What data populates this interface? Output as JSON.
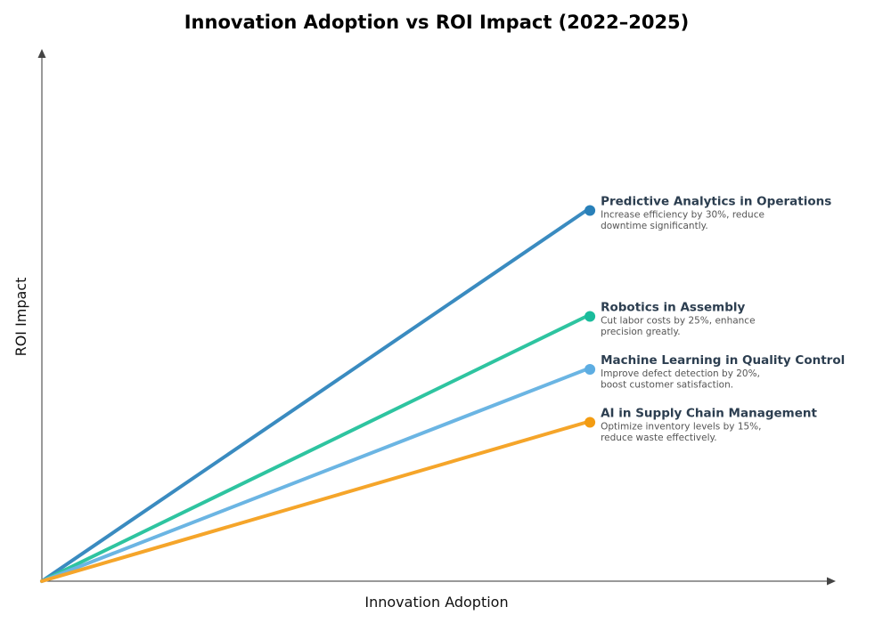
{
  "chart_data": {
    "type": "line",
    "title": "Innovation Adoption vs ROI Impact (2022–2025)",
    "xlabel": "Innovation Adoption",
    "ylabel": "ROI Impact",
    "xlim": [
      0,
      10
    ],
    "ylim": [
      0,
      10
    ],
    "grid": false,
    "series": [
      {
        "name": "Predictive Analytics in Operations",
        "description_lines": [
          "Increase efficiency by 30%, reduce",
          "downtime significantly."
        ],
        "x": [
          0,
          7
        ],
        "y": [
          0,
          7
        ],
        "color": "#3a8bc0",
        "marker_color": "#2980b9"
      },
      {
        "name": "Robotics in Assembly",
        "description_lines": [
          "Cut labor costs by 25%, enhance",
          "precision greatly."
        ],
        "x": [
          0,
          7
        ],
        "y": [
          0,
          5
        ],
        "color": "#2ec4a0",
        "marker_color": "#1abc9c"
      },
      {
        "name": "Machine Learning in Quality Control",
        "description_lines": [
          "Improve defect detection by 20%,",
          "boost customer satisfaction."
        ],
        "x": [
          0,
          7
        ],
        "y": [
          0,
          4
        ],
        "color": "#6bb5e3",
        "marker_color": "#5dade2"
      },
      {
        "name": "AI in Supply Chain Management",
        "description_lines": [
          "Optimize inventory levels by 15%,",
          "reduce waste effectively."
        ],
        "x": [
          0,
          7
        ],
        "y": [
          0,
          3
        ],
        "color": "#f5a52a",
        "marker_color": "#f39c12"
      }
    ]
  }
}
